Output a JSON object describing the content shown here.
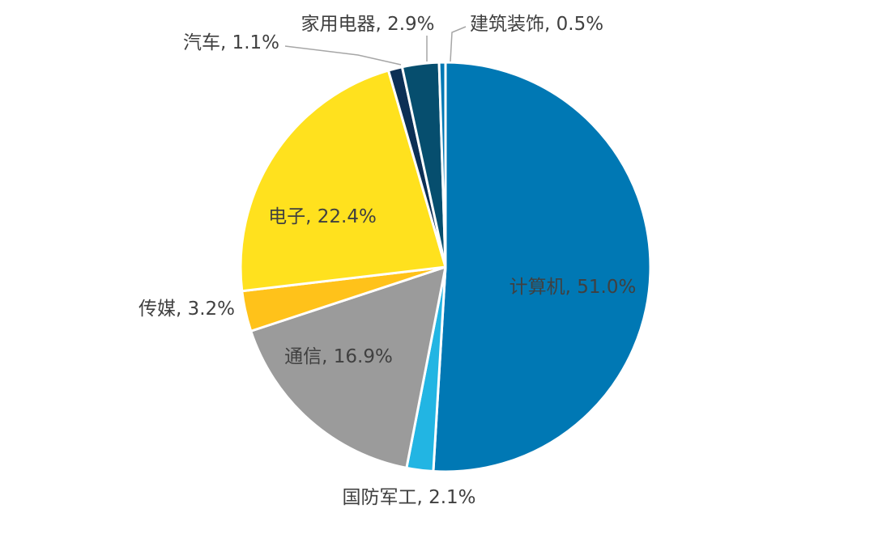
{
  "chart_data": {
    "type": "pie",
    "title": "",
    "categories": [
      "计算机",
      "国防军工",
      "通信",
      "传媒",
      "电子",
      "汽车",
      "家用电器",
      "建筑装饰"
    ],
    "values": [
      51.0,
      2.1,
      16.9,
      3.2,
      22.4,
      1.1,
      2.9,
      0.5
    ],
    "labels": [
      "计算机, 51.0%",
      "国防军工, 2.1%",
      "通信, 16.9%",
      "传媒, 3.2%",
      "电子, 22.4%",
      "汽车, 1.1%",
      "家用电器, 2.9%",
      "建筑装饰, 0.5%"
    ],
    "colors": [
      "#0078B4",
      "#22B5E3",
      "#9B9B9B",
      "#FFC21A",
      "#FFE11E",
      "#0C2F55",
      "#064E6E",
      "#0078B4"
    ],
    "start_angle_deg": 0,
    "direction": "clockwise",
    "legend": "none"
  }
}
